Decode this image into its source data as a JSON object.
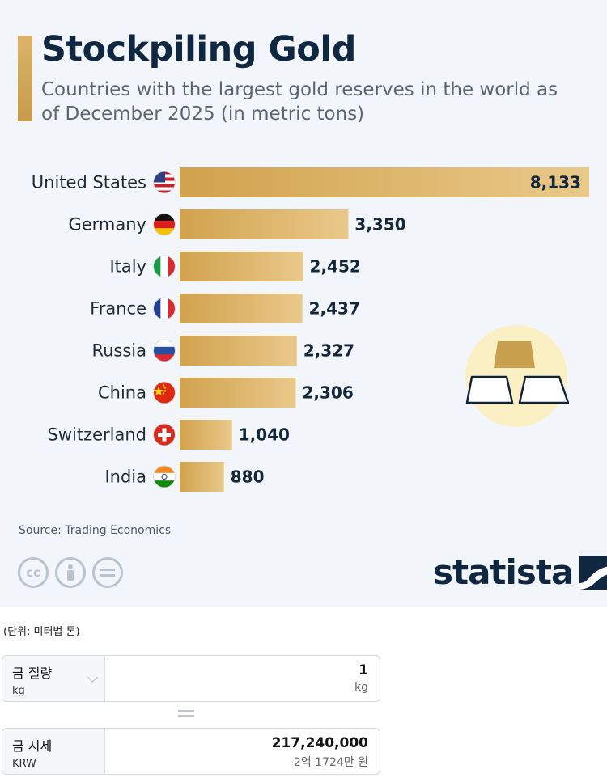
{
  "header": {
    "title": "Stockpiling Gold",
    "subtitle": "Countries with the largest gold reserves in the world as of December 2025 (in metric tons)"
  },
  "chart_data": {
    "type": "bar",
    "orientation": "horizontal",
    "title": "Stockpiling Gold",
    "subtitle": "Countries with the largest gold reserves in the world as of December 2025 (in metric tons)",
    "categories": [
      "United States",
      "Germany",
      "Italy",
      "France",
      "Russia",
      "China",
      "Switzerland",
      "India"
    ],
    "values": [
      8133,
      3350,
      2452,
      2437,
      2327,
      2306,
      1040,
      880
    ],
    "value_labels": [
      "8,133",
      "3,350",
      "2,452",
      "2,437",
      "2,327",
      "2,306",
      "1,040",
      "880"
    ],
    "xlim": [
      0,
      8133
    ],
    "grid": false,
    "legend": "none",
    "flags": [
      "us-flag-icon",
      "germany-flag-icon",
      "italy-flag-icon",
      "france-flag-icon",
      "russia-flag-icon",
      "china-flag-icon",
      "switzerland-flag-icon",
      "india-flag-icon"
    ],
    "bar_color": "#d9b062"
  },
  "footer": {
    "source": "Source: Trading Economics",
    "brand": "statista",
    "license_icons": [
      "cc-icon",
      "attribution-icon",
      "no-derivatives-icon"
    ]
  },
  "converter": {
    "unit_note": "(단위: 미터법 톤)",
    "input": {
      "label": "금 질량",
      "sublabel": "kg",
      "value": "1",
      "unit": "kg"
    },
    "output": {
      "label": "금 시세",
      "sublabel": "KRW",
      "value": "217,240,000",
      "readable": "2억 1724만 원"
    }
  },
  "colors": {
    "background": "#f2f6fa",
    "accent": "#d4a855",
    "title": "#0f2740"
  }
}
